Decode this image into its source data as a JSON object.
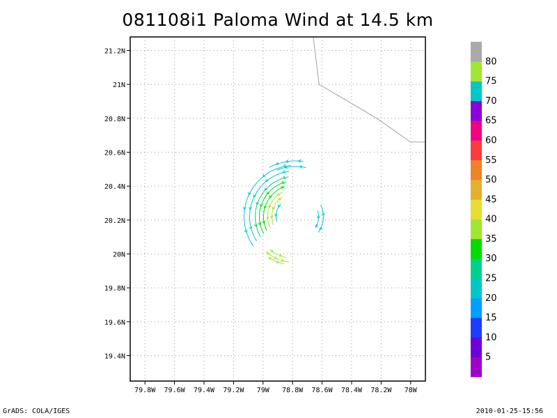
{
  "title": "081108i1 Paloma Wind at 14.5 km",
  "footer": {
    "left": "GrADS: COLA/IGES",
    "right": "2010-01-25-15:56"
  },
  "map": {
    "lon_range": [
      -79.9,
      -77.9
    ],
    "lat_range": [
      19.25,
      21.28
    ],
    "lon_ticks": [
      {
        "v": -79.8,
        "label": "79.8W"
      },
      {
        "v": -79.6,
        "label": "79.6W"
      },
      {
        "v": -79.4,
        "label": "79.4W"
      },
      {
        "v": -79.2,
        "label": "79.2W"
      },
      {
        "v": -79.0,
        "label": "79W"
      },
      {
        "v": -78.8,
        "label": "78.8W"
      },
      {
        "v": -78.6,
        "label": "78.6W"
      },
      {
        "v": -78.4,
        "label": "78.4W"
      },
      {
        "v": -78.2,
        "label": "78.2W"
      },
      {
        "v": -78.0,
        "label": "78W"
      }
    ],
    "lat_ticks": [
      {
        "v": 19.4,
        "label": "19.4N"
      },
      {
        "v": 19.6,
        "label": "19.6N"
      },
      {
        "v": 19.8,
        "label": "19.8N"
      },
      {
        "v": 20.0,
        "label": "20N"
      },
      {
        "v": 20.2,
        "label": "20.2N"
      },
      {
        "v": 20.4,
        "label": "20.4N"
      },
      {
        "v": 20.6,
        "label": "20.6N"
      },
      {
        "v": 20.8,
        "label": "20.8N"
      },
      {
        "v": 21.0,
        "label": "21N"
      },
      {
        "v": 21.2,
        "label": "21.2N"
      }
    ],
    "coastline": [
      [
        -78.66,
        21.28
      ],
      [
        -78.62,
        21.0
      ],
      [
        -78.23,
        20.8
      ],
      [
        -78.0,
        20.66
      ],
      [
        -77.9,
        20.66
      ]
    ],
    "grid": true,
    "storm_center": [
      -78.78,
      20.22
    ]
  },
  "colorbar": {
    "labels": [
      "5",
      "10",
      "15",
      "20",
      "25",
      "30",
      "35",
      "40",
      "45",
      "50",
      "55",
      "60",
      "65",
      "70",
      "75",
      "80"
    ],
    "colors": [
      "#a000c8",
      "#6e00dc",
      "#1e3cff",
      "#00a0ff",
      "#00c8c8",
      "#00d28c",
      "#00dc00",
      "#a0e632",
      "#e6dc32",
      "#e6af2d",
      "#f08228",
      "#fa3c3c",
      "#f00082",
      "#8c00dc",
      "#00c8c8",
      "#a0e632",
      "#aaaaaa"
    ]
  },
  "wind_colors": {
    "cyan": "#00c8c8",
    "teal": "#00d28c",
    "green": "#00dc00",
    "yellowgreen": "#a0e632"
  }
}
